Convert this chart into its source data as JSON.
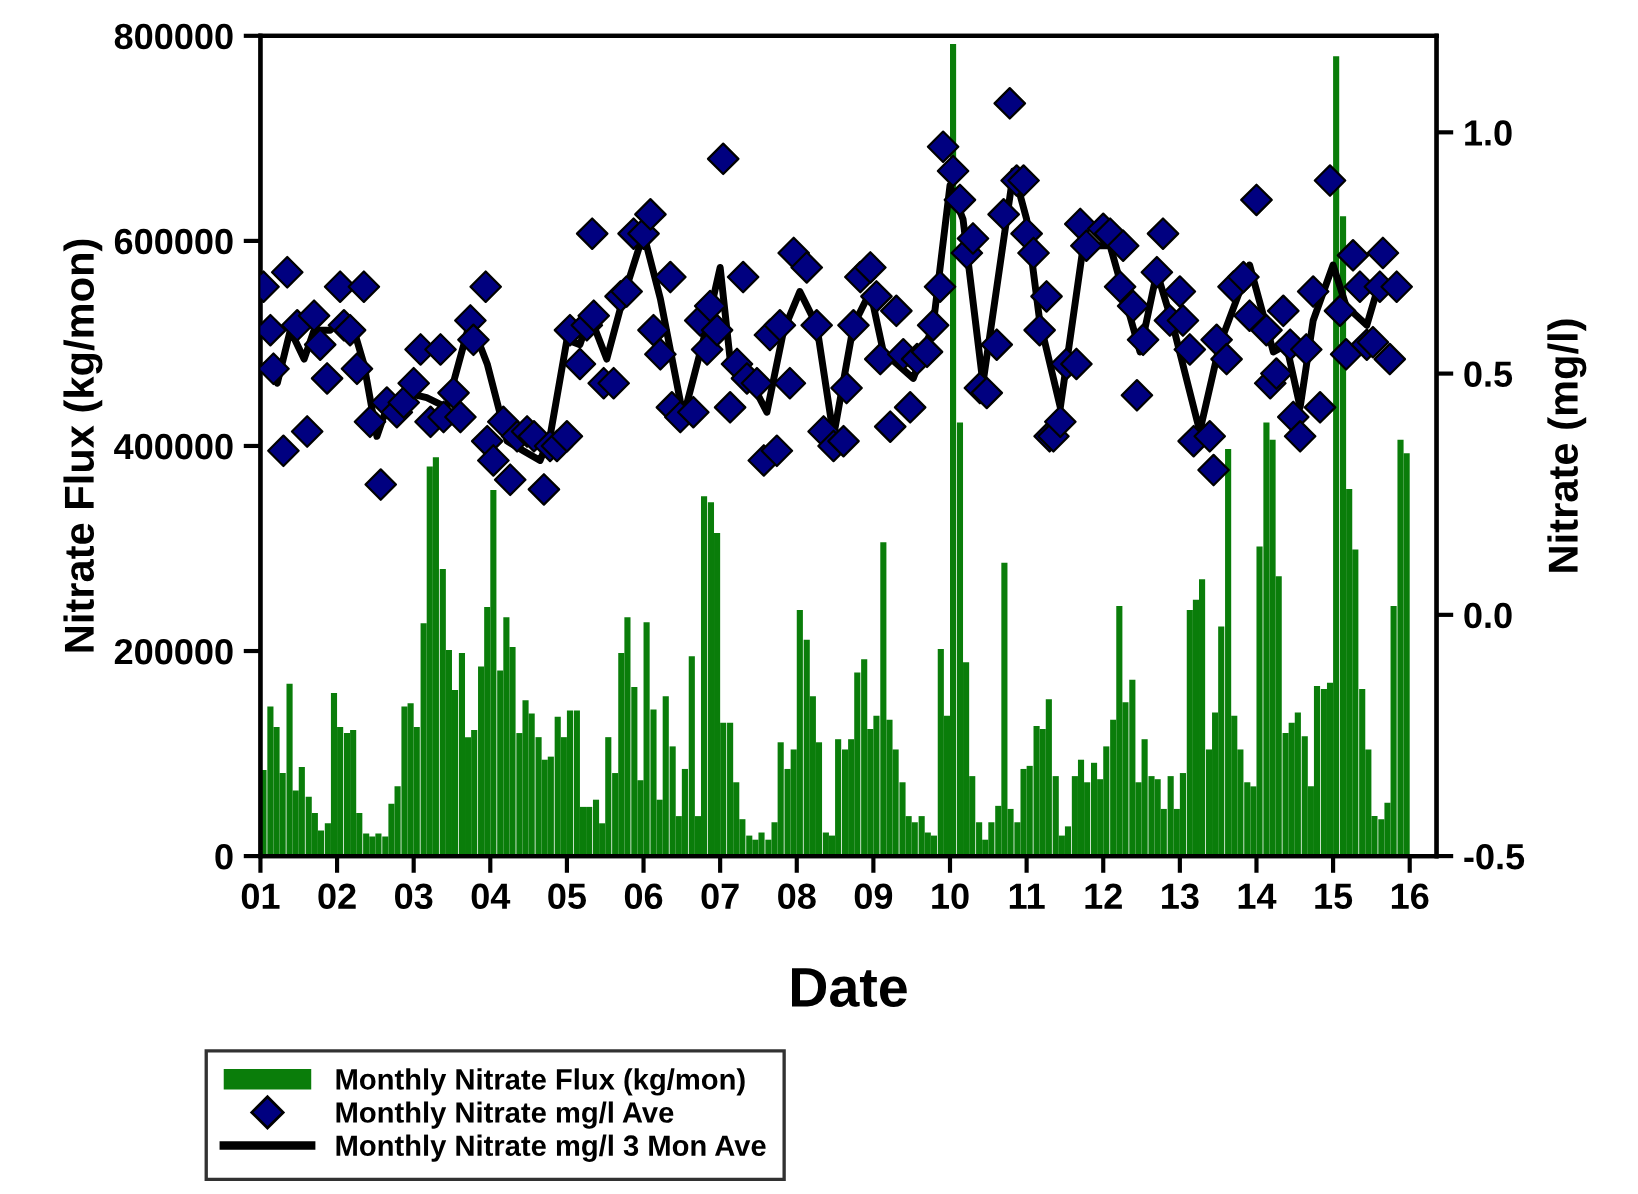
{
  "chart_data": {
    "type": "bar",
    "xlabel": "Date",
    "ylabel": "Nitrate Flux (kg/mon)",
    "y2label": "Nitrate (mg/l)",
    "xlim": [
      1,
      16.35
    ],
    "xticks": [
      {
        "value": 1,
        "label": "01"
      },
      {
        "value": 2,
        "label": "02"
      },
      {
        "value": 3,
        "label": "03"
      },
      {
        "value": 4,
        "label": "04"
      },
      {
        "value": 5,
        "label": "05"
      },
      {
        "value": 6,
        "label": "06"
      },
      {
        "value": 7,
        "label": "07"
      },
      {
        "value": 8,
        "label": "08"
      },
      {
        "value": 9,
        "label": "09"
      },
      {
        "value": 10,
        "label": "10"
      },
      {
        "value": 11,
        "label": "11"
      },
      {
        "value": 12,
        "label": "12"
      },
      {
        "value": 13,
        "label": "13"
      },
      {
        "value": 14,
        "label": "14"
      },
      {
        "value": 15,
        "label": "15"
      },
      {
        "value": 16,
        "label": "16"
      }
    ],
    "ylim": [
      0,
      800000
    ],
    "yticks": [
      0,
      200000,
      400000,
      600000,
      800000
    ],
    "y2lim": [
      -0.5,
      1.2
    ],
    "y2ticks": [
      {
        "value": -0.5,
        "label": "-0.5"
      },
      {
        "value": 0,
        "label": "0.0"
      },
      {
        "value": 0.5,
        "label": "0.5"
      },
      {
        "value": 1,
        "label": "1.0"
      }
    ],
    "grid": false,
    "legend": "bottom left",
    "series": [
      {
        "name": "Monthly Nitrate Flux (kg/mon)",
        "color": "#0a7d0a",
        "x": [
          1.04,
          1.13,
          1.21,
          1.29,
          1.38,
          1.46,
          1.54,
          1.63,
          1.71,
          1.79,
          1.88,
          1.96,
          2.04,
          2.13,
          2.21,
          2.29,
          2.38,
          2.46,
          2.54,
          2.63,
          2.71,
          2.79,
          2.88,
          2.96,
          3.04,
          3.13,
          3.21,
          3.29,
          3.38,
          3.46,
          3.54,
          3.63,
          3.71,
          3.79,
          3.88,
          3.96,
          4.04,
          4.13,
          4.21,
          4.29,
          4.38,
          4.46,
          4.54,
          4.63,
          4.71,
          4.79,
          4.88,
          4.96,
          5.04,
          5.13,
          5.21,
          5.29,
          5.38,
          5.46,
          5.54,
          5.63,
          5.71,
          5.79,
          5.88,
          5.96,
          6.04,
          6.13,
          6.21,
          6.29,
          6.38,
          6.46,
          6.54,
          6.63,
          6.71,
          6.79,
          6.88,
          6.96,
          7.04,
          7.13,
          7.21,
          7.29,
          7.38,
          7.46,
          7.54,
          7.63,
          7.71,
          7.79,
          7.88,
          7.96,
          8.04,
          8.13,
          8.21,
          8.29,
          8.38,
          8.46,
          8.54,
          8.63,
          8.71,
          8.79,
          8.88,
          8.96,
          9.04,
          9.13,
          9.21,
          9.29,
          9.38,
          9.46,
          9.54,
          9.63,
          9.71,
          9.79,
          9.88,
          9.96,
          10.04,
          10.13,
          10.21,
          10.29,
          10.38,
          10.46,
          10.54,
          10.63,
          10.71,
          10.79,
          10.88,
          10.96,
          11.04,
          11.13,
          11.21,
          11.29,
          11.38,
          11.46,
          11.54,
          11.63,
          11.71,
          11.79,
          11.88,
          11.96,
          12.04,
          12.13,
          12.21,
          12.29,
          12.38,
          12.46,
          12.54,
          12.63,
          12.71,
          12.79,
          12.88,
          12.96,
          13.04,
          13.13,
          13.21,
          13.29,
          13.38,
          13.46,
          13.54,
          13.63,
          13.71,
          13.79,
          13.88,
          13.96,
          14.04,
          14.13,
          14.21,
          14.29,
          14.38,
          14.46,
          14.54,
          14.63,
          14.71,
          14.79,
          14.88,
          14.96,
          15.04,
          15.13,
          15.21,
          15.29,
          15.38,
          15.46,
          15.54,
          15.63,
          15.71,
          15.79,
          15.88,
          15.96
        ],
        "values": [
          84000,
          146000,
          126000,
          81000,
          168000,
          64000,
          87000,
          58000,
          42000,
          25000,
          32000,
          159000,
          126000,
          120000,
          123000,
          42000,
          22000,
          19000,
          22000,
          19000,
          51000,
          68000,
          146000,
          149000,
          126000,
          227000,
          380000,
          389000,
          280000,
          201000,
          162000,
          198000,
          116000,
          123000,
          185000,
          243000,
          357000,
          181000,
          233000,
          204000,
          120000,
          152000,
          139000,
          116000,
          94000,
          97000,
          136000,
          116000,
          142000,
          142000,
          48000,
          48000,
          55000,
          32000,
          116000,
          81000,
          198000,
          233000,
          165000,
          74000,
          228000,
          143000,
          55000,
          156000,
          107000,
          39000,
          85000,
          195000,
          39000,
          351000,
          345000,
          315000,
          130000,
          130000,
          72000,
          36000,
          20000,
          16000,
          23000,
          16000,
          33000,
          111000,
          85000,
          104000,
          240000,
          211000,
          156000,
          111000,
          23000,
          20000,
          114000,
          104000,
          114000,
          179000,
          192000,
          124000,
          137000,
          306000,
          133000,
          104000,
          72000,
          39000,
          33000,
          39000,
          23000,
          20000,
          202000,
          137000,
          792000,
          423000,
          189000,
          78000,
          33000,
          16000,
          33000,
          49000,
          286000,
          46000,
          33000,
          85000,
          88000,
          127000,
          124000,
          153000,
          78000,
          20000,
          29000,
          78000,
          94000,
          72000,
          91000,
          75000,
          107000,
          133000,
          244000,
          150000,
          172000,
          72000,
          114000,
          78000,
          75000,
          46000,
          78000,
          46000,
          81000,
          240000,
          250000,
          270000,
          104000,
          140000,
          224000,
          397000,
          137000,
          104000,
          72000,
          68000,
          302000,
          423000,
          406000,
          273000,
          120000,
          130000,
          140000,
          117000,
          68000,
          166000,
          163000,
          169000,
          780000,
          624000,
          358000,
          299000,
          163000,
          104000,
          39000,
          36000,
          52000,
          244000,
          406000,
          393000
        ]
      },
      {
        "name": "Monthly Nitrate mg/l Ave",
        "type": "scatter",
        "axis": "y2",
        "color": "#000080",
        "marker": "diamond",
        "x": [
          1.04,
          1.13,
          1.17,
          1.3,
          1.35,
          1.48,
          1.61,
          1.7,
          1.78,
          1.87,
          2.04,
          2.09,
          2.17,
          2.26,
          2.35,
          2.43,
          2.57,
          2.65,
          2.78,
          2.87,
          3.0,
          3.09,
          3.22,
          3.35,
          3.39,
          3.52,
          3.61,
          3.74,
          3.78,
          3.94,
          3.96,
          4.04,
          4.17,
          4.26,
          4.35,
          4.48,
          4.57,
          4.7,
          4.78,
          4.87,
          5.0,
          5.04,
          5.17,
          5.26,
          5.33,
          5.35,
          5.48,
          5.61,
          5.7,
          5.78,
          5.87,
          6.0,
          6.09,
          6.13,
          6.22,
          6.35,
          6.37,
          6.48,
          6.65,
          6.74,
          6.83,
          6.87,
          6.96,
          7.04,
          7.13,
          7.22,
          7.3,
          7.35,
          7.48,
          7.57,
          7.65,
          7.74,
          7.78,
          7.91,
          7.96,
          8.13,
          8.26,
          8.35,
          8.48,
          8.61,
          8.65,
          8.74,
          8.83,
          8.96,
          9.04,
          9.09,
          9.22,
          9.3,
          9.39,
          9.48,
          9.57,
          9.7,
          9.78,
          9.87,
          9.91,
          10.04,
          10.13,
          10.22,
          10.3,
          10.39,
          10.48,
          10.61,
          10.7,
          10.78,
          10.87,
          10.96,
          11.0,
          11.09,
          11.17,
          11.26,
          11.3,
          11.35,
          11.44,
          11.52,
          11.65,
          11.7,
          11.78,
          12.0,
          12.09,
          12.22,
          12.26,
          12.39,
          12.44,
          12.52,
          12.7,
          12.78,
          12.87,
          13.0,
          13.04,
          13.13,
          13.18,
          13.39,
          13.44,
          13.48,
          13.61,
          13.7,
          13.83,
          13.91,
          14.0,
          14.13,
          14.18,
          14.26,
          14.35,
          14.44,
          14.48,
          14.57,
          14.65,
          14.74,
          14.83,
          14.96,
          15.09,
          15.17,
          15.26,
          15.35,
          15.44,
          15.52,
          15.61,
          15.65,
          15.74,
          15.83
        ],
        "values": [
          0.68,
          0.59,
          0.51,
          0.34,
          0.71,
          0.6,
          0.38,
          0.62,
          0.56,
          0.49,
          0.68,
          0.6,
          0.59,
          0.51,
          0.68,
          0.4,
          0.27,
          0.44,
          0.42,
          0.44,
          0.48,
          0.55,
          0.4,
          0.55,
          0.41,
          0.46,
          0.41,
          0.61,
          0.57,
          0.68,
          0.36,
          0.32,
          0.4,
          0.28,
          0.37,
          0.38,
          0.37,
          0.26,
          0.35,
          0.35,
          0.37,
          0.59,
          0.52,
          0.6,
          0.79,
          0.62,
          0.48,
          0.48,
          0.66,
          0.67,
          0.79,
          0.79,
          0.83,
          0.59,
          0.54,
          0.7,
          0.43,
          0.41,
          0.42,
          0.61,
          0.55,
          0.64,
          0.59,
          0.945,
          0.43,
          0.52,
          0.7,
          0.49,
          0.48,
          0.32,
          0.58,
          0.34,
          0.6,
          0.48,
          0.75,
          0.72,
          0.6,
          0.38,
          0.35,
          0.36,
          0.47,
          0.6,
          0.7,
          0.72,
          0.66,
          0.53,
          0.39,
          0.63,
          0.54,
          0.43,
          0.53,
          0.545,
          0.6,
          0.68,
          0.97,
          0.92,
          0.86,
          0.75,
          0.78,
          0.47,
          0.46,
          0.56,
          0.83,
          1.06,
          0.9,
          0.9,
          0.79,
          0.75,
          0.59,
          0.66,
          0.37,
          0.37,
          0.4,
          0.52,
          0.52,
          0.81,
          0.765,
          0.8,
          0.79,
          0.68,
          0.765,
          0.64,
          0.455,
          0.57,
          0.71,
          0.79,
          0.61,
          0.67,
          0.61,
          0.55,
          0.36,
          0.37,
          0.3,
          0.57,
          0.53,
          0.68,
          0.7,
          0.62,
          0.86,
          0.59,
          0.48,
          0.5,
          0.63,
          0.56,
          0.41,
          0.37,
          0.55,
          0.67,
          0.43,
          0.9,
          0.63,
          0.54,
          0.745,
          0.68,
          0.56,
          0.565,
          0.68,
          0.75,
          0.53,
          0.68
        ]
      },
      {
        "name": "Monthly Nitrate mg/l 3 Mon Ave",
        "type": "line",
        "axis": "y2",
        "color": "#000000",
        "marker": "none",
        "line_style": "solid",
        "x": [
          1.09,
          1.22,
          1.39,
          1.57,
          1.7,
          1.91,
          2.04,
          2.22,
          2.35,
          2.52,
          2.65,
          2.91,
          3.17,
          3.43,
          3.74,
          3.96,
          4.22,
          4.43,
          4.65,
          4.78,
          5.0,
          5.17,
          5.3,
          5.52,
          5.74,
          6.0,
          6.22,
          6.52,
          6.83,
          7.0,
          7.13,
          7.35,
          7.61,
          7.83,
          8.04,
          8.26,
          8.48,
          8.74,
          8.96,
          9.13,
          9.52,
          9.78,
          10.0,
          10.17,
          10.43,
          10.83,
          11.0,
          11.17,
          11.44,
          11.74,
          12.09,
          12.48,
          12.7,
          12.91,
          13.26,
          13.52,
          13.91,
          14.22,
          14.39,
          14.57,
          14.74,
          15.0,
          15.17,
          15.44,
          15.57,
          15.83
        ],
        "values": [
          0.52,
          0.48,
          0.59,
          0.53,
          0.59,
          0.59,
          0.61,
          0.59,
          0.52,
          0.37,
          0.43,
          0.46,
          0.45,
          0.43,
          0.61,
          0.52,
          0.36,
          0.34,
          0.32,
          0.37,
          0.57,
          0.56,
          0.62,
          0.53,
          0.66,
          0.79,
          0.655,
          0.41,
          0.6,
          0.72,
          0.53,
          0.5,
          0.42,
          0.59,
          0.67,
          0.6,
          0.37,
          0.6,
          0.67,
          0.545,
          0.49,
          0.6,
          0.89,
          0.82,
          0.48,
          0.92,
          0.82,
          0.61,
          0.43,
          0.765,
          0.765,
          0.545,
          0.71,
          0.6,
          0.38,
          0.56,
          0.725,
          0.545,
          0.56,
          0.43,
          0.61,
          0.725,
          0.64,
          0.6,
          0.67,
          0.67
        ]
      }
    ]
  }
}
